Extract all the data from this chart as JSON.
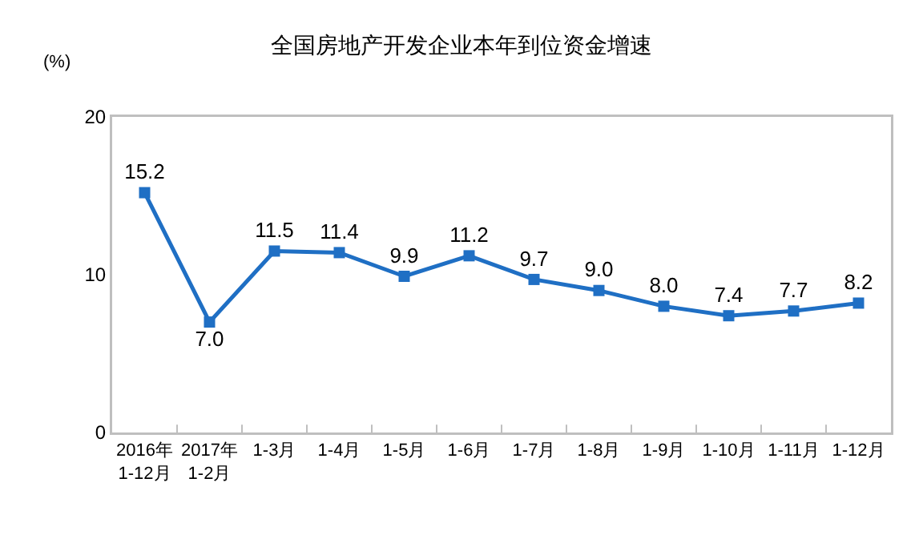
{
  "chart_data": {
    "type": "line",
    "title": "全国房地产开发企业本年到位资金增速",
    "ylabel": "(%)",
    "categories": [
      "2016年\n1-12月",
      "2017年\n1-2月",
      "1-3月",
      "1-4月",
      "1-5月",
      "1-6月",
      "1-7月",
      "1-8月",
      "1-9月",
      "1-10月",
      "1-11月",
      "1-12月"
    ],
    "values": [
      15.2,
      7.0,
      11.5,
      11.4,
      9.9,
      11.2,
      9.7,
      9.0,
      8.0,
      7.4,
      7.7,
      8.2
    ],
    "value_labels": [
      "15.2",
      "7.0",
      "11.5",
      "11.4",
      "9.9",
      "11.2",
      "9.7",
      "9.0",
      "8.0",
      "7.4",
      "7.7",
      "8.2"
    ],
    "color": "#1f6fc4",
    "marker": "square",
    "line_style": "solid",
    "ylim": [
      0,
      20
    ],
    "yticks": [
      0,
      10,
      20
    ]
  }
}
